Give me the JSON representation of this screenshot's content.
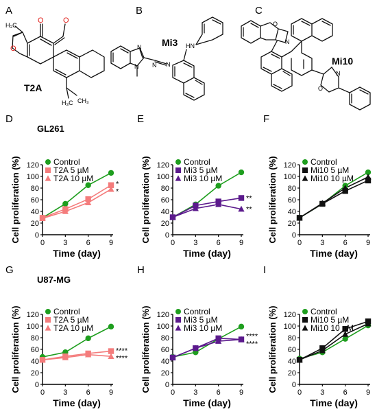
{
  "panels": {
    "A": "A",
    "B": "B",
    "C": "C",
    "D": "D",
    "E": "E",
    "F": "F",
    "G": "G",
    "H": "H",
    "I": "I"
  },
  "molecules": {
    "t2a_name": "T2A",
    "mi3_name": "Mi3",
    "mi10_name": "Mi10",
    "atoms": {
      "o": "O",
      "n": "N",
      "hn": "HN",
      "h3c": "H₃C",
      "ch3": "CH₃"
    }
  },
  "cell_lines": {
    "gl261": "GL261",
    "u87": "U87-MG"
  },
  "colors": {
    "control": "#1e9e1e",
    "t2a": "#f47c7c",
    "mi3": "#5b1a8c",
    "mi10": "#111111"
  },
  "chart_data": [
    {
      "panel": "D",
      "type": "line",
      "xlabel": "Time (day)",
      "ylabel": "Cell proliferation (%)",
      "x": [
        0,
        3,
        6,
        9
      ],
      "xlim": [
        0,
        9
      ],
      "ylim": [
        0,
        120
      ],
      "xticks": [
        0,
        3,
        6,
        9
      ],
      "yticks": [
        0,
        20,
        40,
        60,
        80,
        100,
        120
      ],
      "legend": "top-left",
      "series": [
        {
          "name": "Control",
          "values": [
            29,
            53,
            85,
            106
          ],
          "color": "#1e9e1e",
          "marker": "circle"
        },
        {
          "name": "T2A 5 µM",
          "values": [
            29,
            44,
            61,
            85
          ],
          "color": "#f47c7c",
          "marker": "square"
        },
        {
          "name": "T2A 10 µM",
          "values": [
            28,
            40,
            55,
            78
          ],
          "color": "#f47c7c",
          "marker": "triangle"
        }
      ],
      "annotations": [
        "*",
        "*"
      ]
    },
    {
      "panel": "E",
      "type": "line",
      "xlabel": "Time (day)",
      "ylabel": "Cell proliferation (%)",
      "x": [
        0,
        3,
        6,
        9
      ],
      "xlim": [
        0,
        9
      ],
      "ylim": [
        0,
        120
      ],
      "xticks": [
        0,
        3,
        6,
        9
      ],
      "yticks": [
        0,
        20,
        40,
        60,
        80,
        100,
        120
      ],
      "legend": "top-left",
      "series": [
        {
          "name": "Control",
          "values": [
            30,
            52,
            84,
            107
          ],
          "color": "#1e9e1e",
          "marker": "circle"
        },
        {
          "name": "Mi3 5 µM",
          "values": [
            30,
            50,
            57,
            63
          ],
          "color": "#5b1a8c",
          "marker": "square"
        },
        {
          "name": "Mi3 10 µM",
          "values": [
            30,
            45,
            52,
            44
          ],
          "color": "#5b1a8c",
          "marker": "triangle"
        }
      ],
      "annotations": [
        "**",
        "**"
      ]
    },
    {
      "panel": "F",
      "type": "line",
      "xlabel": "Time (day)",
      "ylabel": "Cell proliferation (%)",
      "x": [
        0,
        3,
        6,
        9
      ],
      "xlim": [
        0,
        9
      ],
      "ylim": [
        0,
        120
      ],
      "xticks": [
        0,
        3,
        6,
        9
      ],
      "yticks": [
        0,
        20,
        40,
        60,
        80,
        100,
        120
      ],
      "legend": "top-left",
      "series": [
        {
          "name": "Control",
          "values": [
            29,
            53,
            84,
            107
          ],
          "color": "#1e9e1e",
          "marker": "circle"
        },
        {
          "name": "Mi10 5 µM",
          "values": [
            29,
            53,
            75,
            93
          ],
          "color": "#111111",
          "marker": "square"
        },
        {
          "name": "Mi10 10 µM",
          "values": [
            29,
            54,
            80,
            99
          ],
          "color": "#111111",
          "marker": "triangle"
        }
      ],
      "annotations": []
    },
    {
      "panel": "G",
      "type": "line",
      "xlabel": "Time (day)",
      "ylabel": "Cell proliferation (%)",
      "x": [
        0,
        3,
        6,
        9
      ],
      "xlim": [
        0,
        9
      ],
      "ylim": [
        0,
        120
      ],
      "xticks": [
        0,
        3,
        6,
        9
      ],
      "yticks": [
        0,
        20,
        40,
        60,
        80,
        100,
        120
      ],
      "legend": "top-left",
      "series": [
        {
          "name": "Control",
          "values": [
            47,
            55,
            79,
            99
          ],
          "color": "#1e9e1e",
          "marker": "circle"
        },
        {
          "name": "T2A 5 µM",
          "values": [
            42,
            48,
            53,
            57
          ],
          "color": "#f47c7c",
          "marker": "square"
        },
        {
          "name": "T2A 10 µM",
          "values": [
            42,
            46,
            51,
            48
          ],
          "color": "#f47c7c",
          "marker": "triangle"
        }
      ],
      "annotations": [
        "****",
        "****"
      ]
    },
    {
      "panel": "H",
      "type": "line",
      "xlabel": "Time (day)",
      "ylabel": "Cell proliferation (%)",
      "x": [
        0,
        3,
        6,
        9
      ],
      "xlim": [
        0,
        9
      ],
      "ylim": [
        0,
        120
      ],
      "xticks": [
        0,
        3,
        6,
        9
      ],
      "yticks": [
        0,
        20,
        40,
        60,
        80,
        100,
        120
      ],
      "legend": "top-left",
      "series": [
        {
          "name": "Control",
          "values": [
            47,
            55,
            78,
            99
          ],
          "color": "#1e9e1e",
          "marker": "circle"
        },
        {
          "name": "Mi3 5 µM",
          "values": [
            46,
            62,
            79,
            77
          ],
          "color": "#5b1a8c",
          "marker": "square"
        },
        {
          "name": "Mi3 10 µM",
          "values": [
            46,
            62,
            74,
            77
          ],
          "color": "#5b1a8c",
          "marker": "triangle"
        }
      ],
      "annotations": [
        "****",
        "****"
      ]
    },
    {
      "panel": "I",
      "type": "line",
      "xlabel": "Time (day)",
      "ylabel": "Cell proliferation (%)",
      "x": [
        0,
        3,
        6,
        9
      ],
      "xlim": [
        0,
        9
      ],
      "ylim": [
        0,
        120
      ],
      "xticks": [
        0,
        3,
        6,
        9
      ],
      "yticks": [
        0,
        20,
        40,
        60,
        80,
        100,
        120
      ],
      "legend": "top-left",
      "series": [
        {
          "name": "Control",
          "values": [
            44,
            55,
            78,
            101
          ],
          "color": "#1e9e1e",
          "marker": "circle"
        },
        {
          "name": "Mi10 5 µM",
          "values": [
            42,
            62,
            95,
            108
          ],
          "color": "#111111",
          "marker": "square"
        },
        {
          "name": "Mi10 10 µM",
          "values": [
            42,
            58,
            86,
            104
          ],
          "color": "#111111",
          "marker": "triangle"
        }
      ],
      "annotations": []
    }
  ]
}
